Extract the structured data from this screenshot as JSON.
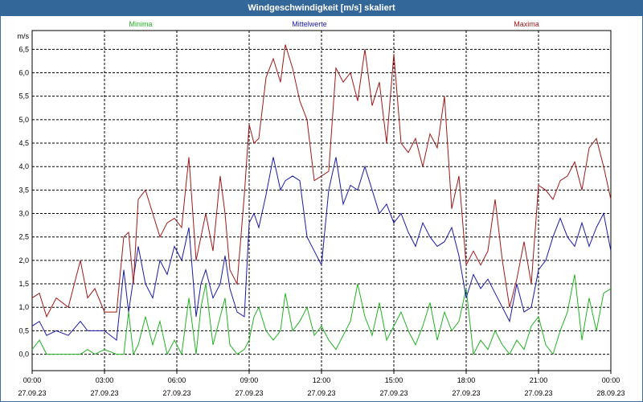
{
  "window": {
    "title": "Windgeschwindigkeit [m/s] skaliert"
  },
  "chart_data": {
    "type": "line",
    "title": "Windgeschwindigkeit [m/s] skaliert",
    "ylabel": "m/s",
    "xlabel": "",
    "ylim": [
      -0.35,
      6.9
    ],
    "xlim": [
      0,
      24
    ],
    "yticks": [
      0.0,
      0.5,
      1.0,
      1.5,
      2.0,
      2.5,
      3.0,
      3.5,
      4.0,
      4.5,
      5.0,
      5.5,
      6.0,
      6.5
    ],
    "ytick_labels": [
      "0,0",
      "0,5",
      "1,0",
      "1,5",
      "2,0",
      "2,5",
      "3,0",
      "3,5",
      "4,0",
      "4,5",
      "5,0",
      "5,5",
      "6,0",
      "6,5"
    ],
    "xticks": [
      0,
      3,
      6,
      9,
      12,
      15,
      18,
      21,
      24
    ],
    "xtick_time_labels": [
      "00:00",
      "03:00",
      "06:00",
      "09:00",
      "12:00",
      "15:00",
      "18:00",
      "21:00",
      "00:00"
    ],
    "xtick_date_labels": [
      "27.09.23",
      "27.09.23",
      "27.09.23",
      "27.09.23",
      "27.09.23",
      "27.09.23",
      "27.09.23",
      "27.09.23",
      "28.09.23"
    ],
    "grid": true,
    "legend_position": "top",
    "colors": {
      "minima": "#22b322",
      "mittel": "#1a1aa8",
      "maxima": "#a01818",
      "grid": "#000000",
      "titlebar": "#336699"
    },
    "series": [
      {
        "name": "Minima",
        "color": "#22b322",
        "x": [
          0,
          0.3,
          0.6,
          1,
          1.5,
          2,
          2.3,
          2.6,
          3,
          3.5,
          3.8,
          4,
          4.2,
          4.4,
          4.7,
          5,
          5.3,
          5.6,
          5.9,
          6.2,
          6.5,
          6.8,
          7,
          7.2,
          7.5,
          7.8,
          8,
          8.2,
          8.5,
          8.8,
          9,
          9.2,
          9.4,
          9.7,
          10,
          10.3,
          10.5,
          10.8,
          11.1,
          11.4,
          11.7,
          12,
          12.3,
          12.6,
          12.9,
          13.2,
          13.5,
          13.8,
          14.1,
          14.4,
          14.7,
          15,
          15.3,
          15.6,
          15.9,
          16.2,
          16.5,
          16.8,
          17.1,
          17.4,
          17.7,
          18,
          18.3,
          18.6,
          18.9,
          19.2,
          19.5,
          19.8,
          20.1,
          20.4,
          20.7,
          21,
          21.3,
          21.6,
          21.9,
          22.2,
          22.5,
          22.8,
          23.1,
          23.4,
          23.7,
          24
        ],
        "values": [
          0.1,
          0.3,
          0,
          0,
          0,
          0,
          0.1,
          0,
          0.1,
          0,
          0,
          0.9,
          0,
          0.2,
          0.8,
          0.2,
          0.7,
          0,
          0.3,
          0,
          1.2,
          0,
          1.0,
          1.5,
          0.2,
          0.8,
          1.2,
          0.2,
          0,
          0.1,
          0.3,
          0.8,
          1.0,
          0.5,
          0.3,
          0.5,
          1.3,
          0.5,
          0.7,
          1.0,
          0.4,
          0.6,
          0.3,
          0.1,
          0.4,
          0.7,
          1.5,
          0.8,
          0.4,
          1.1,
          0.3,
          0.6,
          0.9,
          0.5,
          0.2,
          0.6,
          1.1,
          0.3,
          0.9,
          0.5,
          0.7,
          1.4,
          0,
          0.3,
          0.1,
          0.5,
          0.2,
          0,
          0.3,
          0.1,
          0.6,
          0.8,
          0.2,
          0,
          0.5,
          0.9,
          1.7,
          0.3,
          1.2,
          0.5,
          1.3,
          1.4
        ]
      },
      {
        "name": "Mittelwerte",
        "color": "#1a1aa8",
        "x": [
          0,
          0.3,
          0.6,
          1,
          1.5,
          2,
          2.3,
          2.6,
          3,
          3.5,
          3.8,
          4,
          4.2,
          4.4,
          4.7,
          5,
          5.3,
          5.6,
          5.9,
          6.2,
          6.5,
          6.8,
          7,
          7.2,
          7.5,
          7.8,
          8,
          8.2,
          8.5,
          8.8,
          9,
          9.2,
          9.4,
          9.7,
          10,
          10.3,
          10.5,
          10.8,
          11.1,
          11.4,
          11.7,
          12,
          12.3,
          12.6,
          12.9,
          13.2,
          13.5,
          13.8,
          14.1,
          14.4,
          14.7,
          15,
          15.3,
          15.6,
          15.9,
          16.2,
          16.5,
          16.8,
          17.1,
          17.4,
          17.7,
          18,
          18.3,
          18.6,
          18.9,
          19.2,
          19.5,
          19.8,
          20.1,
          20.4,
          20.7,
          21,
          21.3,
          21.6,
          21.9,
          22.2,
          22.5,
          22.8,
          23.1,
          23.4,
          23.7,
          24
        ],
        "values": [
          0.6,
          0.7,
          0.4,
          0.5,
          0.4,
          0.7,
          0.5,
          0.5,
          0.5,
          0.3,
          1.8,
          0.9,
          1.6,
          2.3,
          1.5,
          1.2,
          2.0,
          1.7,
          2.3,
          2.0,
          2.7,
          0.8,
          1.5,
          1.8,
          1.2,
          1.5,
          2.1,
          1.4,
          0.9,
          0.8,
          2.8,
          3.0,
          2.7,
          3.4,
          4.2,
          3.5,
          3.7,
          3.8,
          3.7,
          2.5,
          2.2,
          1.9,
          3.5,
          4.2,
          3.2,
          3.6,
          3.5,
          4.0,
          3.5,
          3.0,
          3.2,
          2.8,
          3.0,
          2.6,
          2.3,
          2.8,
          2.5,
          2.3,
          2.4,
          2.7,
          2.1,
          1.2,
          1.7,
          1.4,
          1.6,
          1.3,
          1.0,
          0.7,
          1.5,
          0.9,
          1.0,
          1.8,
          2.0,
          2.5,
          2.9,
          2.5,
          2.3,
          2.8,
          2.3,
          2.7,
          3.0,
          2.2
        ]
      },
      {
        "name": "Maxima",
        "color": "#a01818",
        "x": [
          0,
          0.3,
          0.6,
          1,
          1.5,
          2,
          2.3,
          2.6,
          3,
          3.5,
          3.8,
          4,
          4.2,
          4.4,
          4.7,
          5,
          5.3,
          5.6,
          5.9,
          6.2,
          6.5,
          6.8,
          7,
          7.2,
          7.5,
          7.8,
          8,
          8.2,
          8.5,
          8.8,
          9,
          9.2,
          9.4,
          9.7,
          10,
          10.3,
          10.5,
          10.8,
          11.1,
          11.4,
          11.7,
          12,
          12.3,
          12.6,
          12.9,
          13.2,
          13.5,
          13.8,
          14.1,
          14.4,
          14.7,
          15,
          15.3,
          15.6,
          15.9,
          16.2,
          16.5,
          16.8,
          17.1,
          17.4,
          17.7,
          18,
          18.3,
          18.6,
          18.9,
          19.2,
          19.5,
          19.8,
          20.1,
          20.4,
          20.7,
          21,
          21.3,
          21.6,
          21.9,
          22.2,
          22.5,
          22.8,
          23.1,
          23.4,
          23.7,
          24
        ],
        "values": [
          1.2,
          1.3,
          0.8,
          1.2,
          1.0,
          2.0,
          1.2,
          1.4,
          0.9,
          0.9,
          2.5,
          2.6,
          1.5,
          3.3,
          3.5,
          3.0,
          2.5,
          2.8,
          2.9,
          2.7,
          4.2,
          2.0,
          2.5,
          3.0,
          2.2,
          3.8,
          3.0,
          1.8,
          1.5,
          3.4,
          4.9,
          4.5,
          4.6,
          5.9,
          6.3,
          5.8,
          6.6,
          6.1,
          5.4,
          5.0,
          3.7,
          3.8,
          3.9,
          6.1,
          5.8,
          6.0,
          5.4,
          6.5,
          5.3,
          5.8,
          4.5,
          6.4,
          4.5,
          4.3,
          4.6,
          4.0,
          4.7,
          4.4,
          5.5,
          3.1,
          3.8,
          1.9,
          2.2,
          1.9,
          2.2,
          3.3,
          2.0,
          1.0,
          1.6,
          2.4,
          1.5,
          3.6,
          3.5,
          3.3,
          3.7,
          3.8,
          4.1,
          3.5,
          4.4,
          4.6,
          4.0,
          3.3
        ]
      }
    ]
  }
}
